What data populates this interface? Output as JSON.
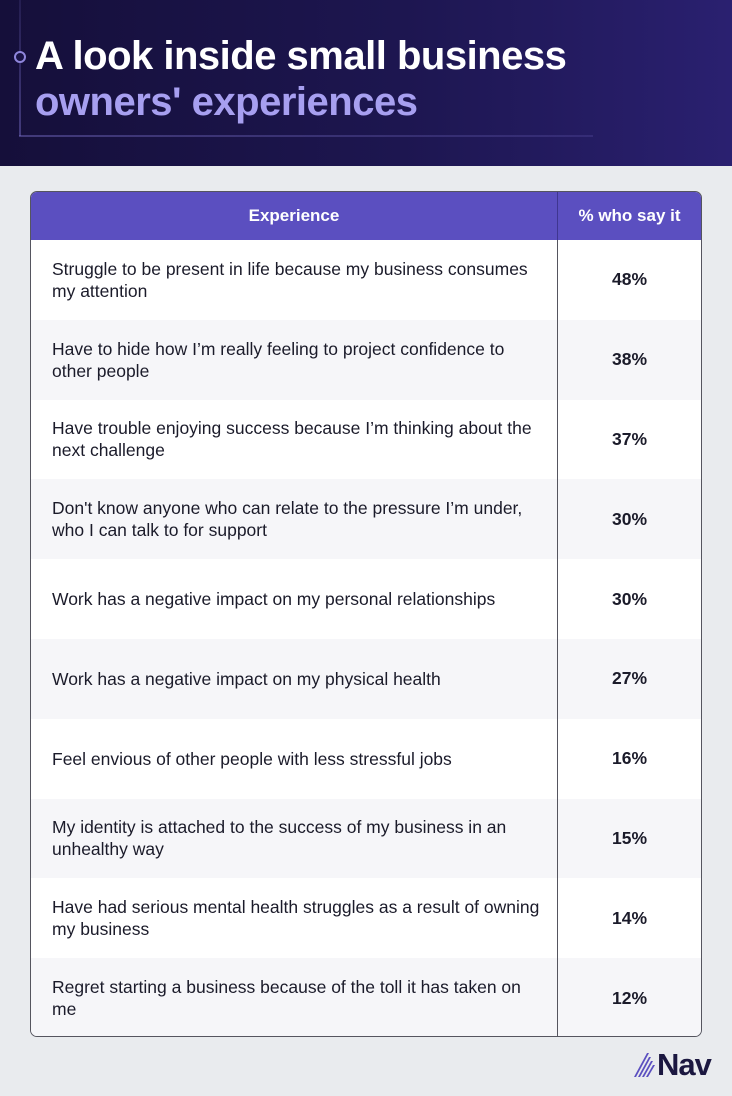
{
  "header": {
    "title_line1": "A look inside small business",
    "title_line2": "owners' experiences"
  },
  "chart_data": {
    "type": "table",
    "title": "A look inside small business owners' experiences",
    "columns": [
      "Experience",
      "% who say it"
    ],
    "rows": [
      {
        "experience": "Struggle to be present in life because my business consumes my attention",
        "pct": "48%",
        "value": 48
      },
      {
        "experience": "Have to hide how I’m really feeling to project confidence to other people",
        "pct": "38%",
        "value": 38
      },
      {
        "experience": "Have trouble enjoying success because I’m thinking about the next challenge",
        "pct": "37%",
        "value": 37
      },
      {
        "experience": "Don't know anyone who can relate to the pressure I’m under, who I can talk to for support",
        "pct": "30%",
        "value": 30
      },
      {
        "experience": "Work has a negative impact on my personal relationships",
        "pct": "30%",
        "value": 30
      },
      {
        "experience": "Work has a negative impact on my physical health",
        "pct": "27%",
        "value": 27
      },
      {
        "experience": "Feel envious of other people with less stressful jobs",
        "pct": "16%",
        "value": 16
      },
      {
        "experience": "My identity is attached to the success of my business in an unhealthy way",
        "pct": "15%",
        "value": 15
      },
      {
        "experience": "Have had serious mental health struggles as a result of owning my business",
        "pct": "14%",
        "value": 14
      },
      {
        "experience": "Regret starting a business because of the toll it has taken on me",
        "pct": "12%",
        "value": 12
      }
    ]
  },
  "logo": {
    "text": "Nav"
  },
  "colors": {
    "header_bg": "#1d1650",
    "title_accent": "#a79ff0",
    "table_header_bg": "#5b4fc0",
    "row_alt_bg": "#f6f6f9",
    "logo_icon": "#5b4fc0"
  }
}
